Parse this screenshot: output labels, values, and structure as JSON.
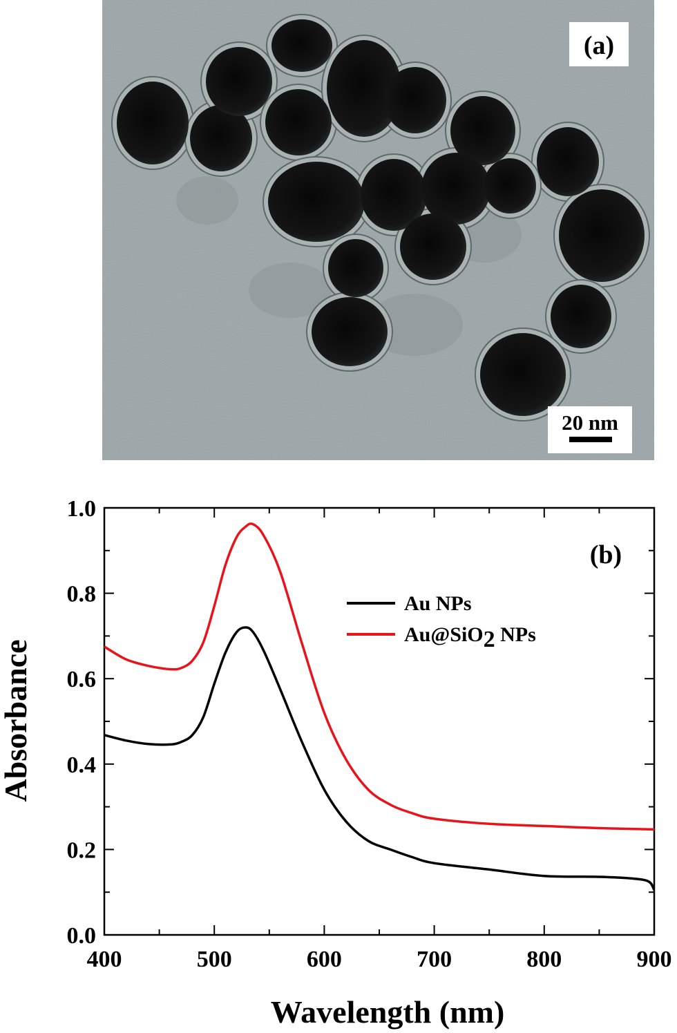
{
  "panel_a": {
    "label": "(a)",
    "scale_bar": "20 nm"
  },
  "chart_data": {
    "type": "line",
    "panel_label": "(b)",
    "xlabel": "Wavelength (nm)",
    "ylabel": "Absorbance",
    "xlim": [
      400,
      900
    ],
    "ylim": [
      0.0,
      1.0
    ],
    "xticks": [
      400,
      500,
      600,
      700,
      800,
      900
    ],
    "yticks": [
      0.0,
      0.2,
      0.4,
      0.6,
      0.8,
      1.0
    ],
    "xtick_labels": [
      "400",
      "500",
      "600",
      "700",
      "800",
      "900"
    ],
    "ytick_labels": [
      "0.0",
      "0.2",
      "0.4",
      "0.6",
      "0.8",
      "1.0"
    ],
    "grid": false,
    "legend_position": "upper-right",
    "series": [
      {
        "name": "Au NPs",
        "color": "#000000",
        "x": [
          400,
          420,
          440,
          460,
          470,
          480,
          490,
          500,
          510,
          520,
          528,
          535,
          545,
          560,
          580,
          600,
          620,
          640,
          660,
          680,
          700,
          750,
          800,
          850,
          880,
          895,
          900
        ],
        "y": [
          0.468,
          0.455,
          0.447,
          0.446,
          0.452,
          0.468,
          0.51,
          0.588,
          0.66,
          0.708,
          0.72,
          0.71,
          0.665,
          0.575,
          0.45,
          0.34,
          0.265,
          0.22,
          0.2,
          0.182,
          0.168,
          0.153,
          0.138,
          0.136,
          0.132,
          0.125,
          0.105
        ]
      },
      {
        "name": "Au@SiO2 NPs",
        "legend_label": "Au@SiO",
        "legend_subscript": "2",
        "legend_suffix": "NPs",
        "color": "#e8141a",
        "x": [
          400,
          420,
          440,
          460,
          470,
          480,
          490,
          500,
          510,
          520,
          528,
          535,
          545,
          560,
          580,
          600,
          620,
          640,
          660,
          680,
          700,
          750,
          800,
          850,
          900
        ],
        "y": [
          0.675,
          0.645,
          0.63,
          0.622,
          0.625,
          0.642,
          0.685,
          0.77,
          0.865,
          0.93,
          0.955,
          0.962,
          0.935,
          0.85,
          0.68,
          0.52,
          0.41,
          0.34,
          0.305,
          0.285,
          0.272,
          0.26,
          0.255,
          0.25,
          0.247
        ]
      }
    ]
  }
}
